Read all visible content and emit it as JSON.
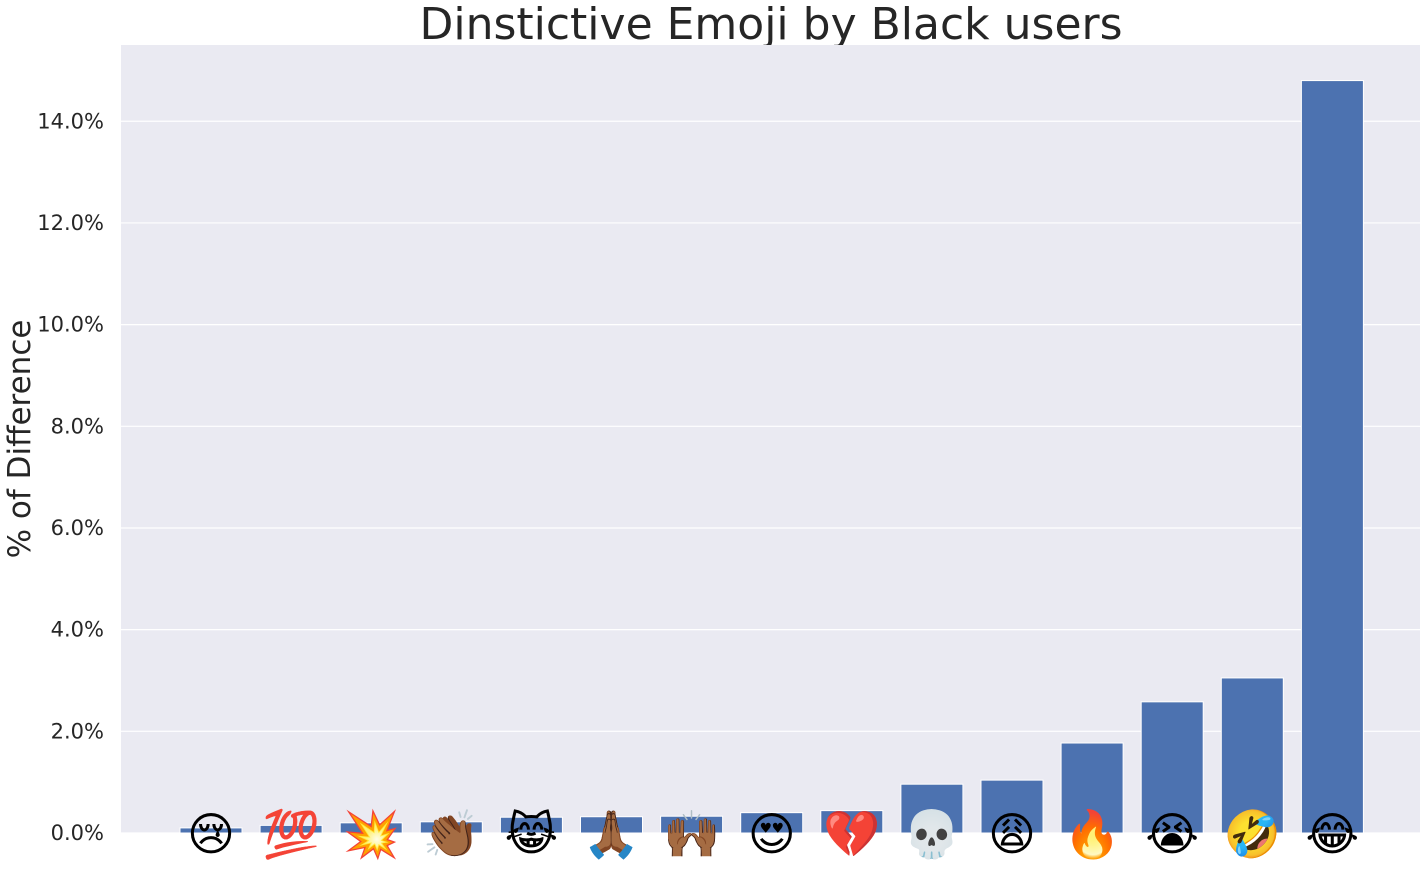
{
  "chart_data": {
    "type": "bar",
    "title": "Dinstictive Emoji by Black users",
    "xlabel": "",
    "ylabel": "% of Difference",
    "ylim": [
      0,
      15.5
    ],
    "yticks": [
      0,
      2,
      4,
      6,
      8,
      10,
      12,
      14
    ],
    "ytick_labels": [
      "0.0%",
      "2.0%",
      "4.0%",
      "6.0%",
      "8.0%",
      "10.0%",
      "12.0%",
      "14.0%"
    ],
    "grid": true,
    "legend": "none",
    "categories": [
      "😢",
      "💯",
      "💥",
      "👏🏾",
      "😹",
      "🙏🏾",
      "🙌🏾",
      "😍",
      "💔",
      "💀",
      "😩",
      "🔥",
      "😭",
      "🤣",
      "😂"
    ],
    "category_icons": [
      "crying-face",
      "hundred-points",
      "collision",
      "clapping-hands",
      "cat-tears-of-joy",
      "folded-hands",
      "raising-hands",
      "heart-eyes",
      "broken-heart",
      "skull",
      "weary-face",
      "fire",
      "loudly-crying-face",
      "rolling-on-floor-laughing",
      "face-with-tears-of-joy"
    ],
    "values": [
      0.1,
      0.15,
      0.2,
      0.22,
      0.31,
      0.32,
      0.33,
      0.4,
      0.44,
      0.96,
      1.04,
      1.77,
      2.58,
      3.05,
      14.8
    ],
    "colors": {
      "bar": "#4c72b0",
      "plot_bg": "#eaeaf2",
      "grid": "#ffffff",
      "text": "#262626"
    }
  }
}
